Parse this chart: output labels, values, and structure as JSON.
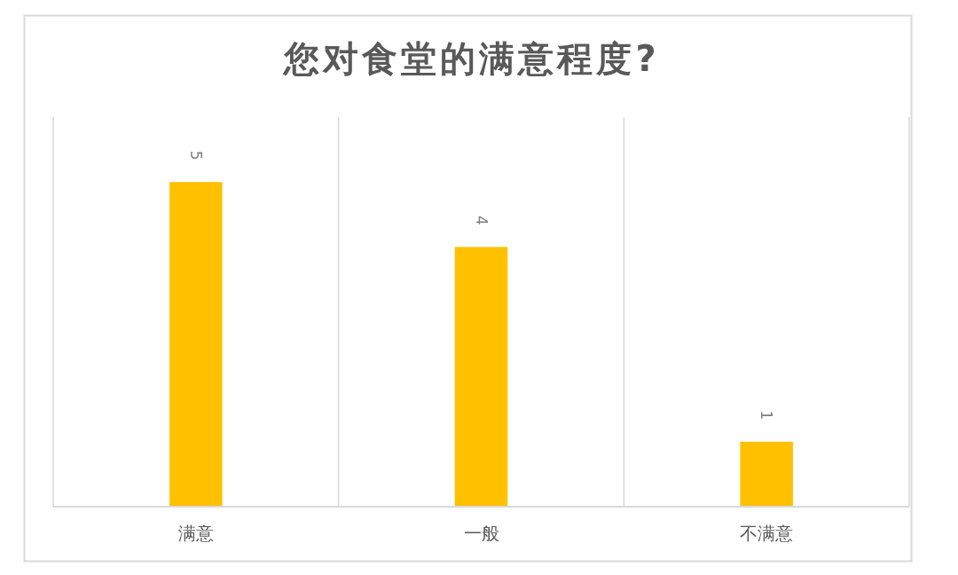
{
  "chart_data": {
    "type": "bar",
    "title": "您对食堂的满意程度?",
    "categories": [
      "满意",
      "一般",
      "不满意"
    ],
    "values": [
      5,
      4,
      1
    ],
    "color": "#ffc000",
    "data_labels": true,
    "grid": "x"
  }
}
